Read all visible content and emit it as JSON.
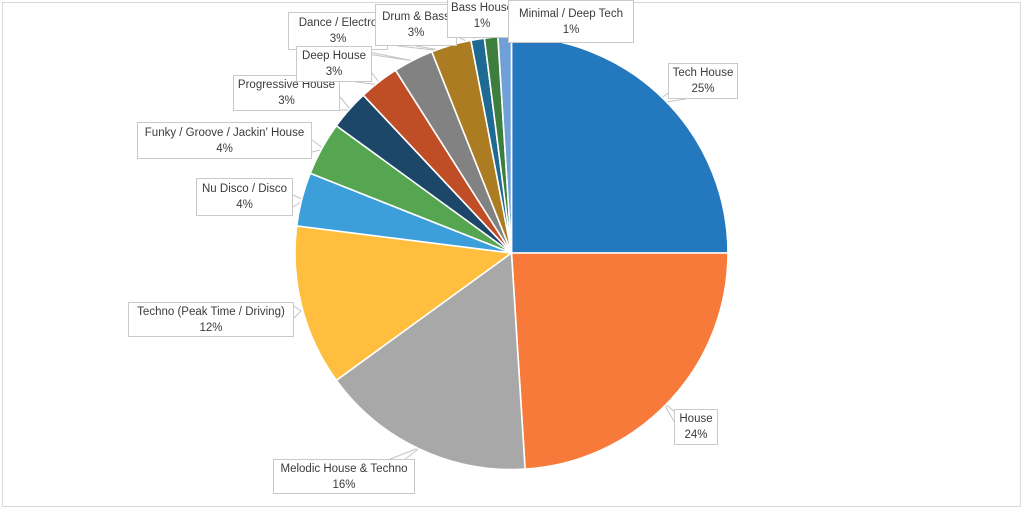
{
  "chart_data": {
    "type": "pie",
    "title": "",
    "legend": "none",
    "start_angle_deg": 0,
    "direction": "clockwise",
    "labels_style": "callout boxes with leader lines, label + percent",
    "series": [
      {
        "label": "Tech House",
        "percent": 25,
        "percent_label": "25%",
        "color": "#2478BD"
      },
      {
        "label": "House",
        "percent": 24,
        "percent_label": "24%",
        "color": "#F87A3B"
      },
      {
        "label": "Melodic House & Techno",
        "percent": 16,
        "percent_label": "16%",
        "color": "#A8A8A8"
      },
      {
        "label": "Techno (Peak Time / Driving)",
        "percent": 12,
        "percent_label": "12%",
        "color": "#FFBE3D"
      },
      {
        "label": "Nu Disco / Disco",
        "percent": 4,
        "percent_label": "4%",
        "color": "#3C9FDA"
      },
      {
        "label": "Funky / Groove / Jackin' House",
        "percent": 4,
        "percent_label": "4%",
        "color": "#56A551"
      },
      {
        "label": "Progressive House",
        "percent": 3,
        "percent_label": "3%",
        "color": "#1D4768"
      },
      {
        "label": "Deep House",
        "percent": 3,
        "percent_label": "3%",
        "color": "#BF4D26"
      },
      {
        "label": "Dance / Electro",
        "percent": 3,
        "percent_label": "3%",
        "color": "#828282"
      },
      {
        "label": "Drum & Bass",
        "percent": 3,
        "percent_label": "3%",
        "color": "#AB7C21"
      },
      {
        "label": "Bass House",
        "percent": 1,
        "percent_label": "1%",
        "color": "#1E6A93"
      },
      {
        "label": "Minimal / Deep Tech",
        "percent": 1,
        "percent_label": "1%",
        "color": "#3C7E3E"
      },
      {
        "label": "",
        "percent": 1,
        "percent_label": "",
        "color": "#6FA0D8"
      }
    ]
  },
  "colors": {
    "background": "#FFFFFF",
    "frame_border": "#D9D9D9",
    "label_box_border": "#C9C9C9",
    "label_text": "#3B3B3B",
    "leader_line": "#C4C4C4",
    "slice_separator": "#FFFFFF"
  }
}
